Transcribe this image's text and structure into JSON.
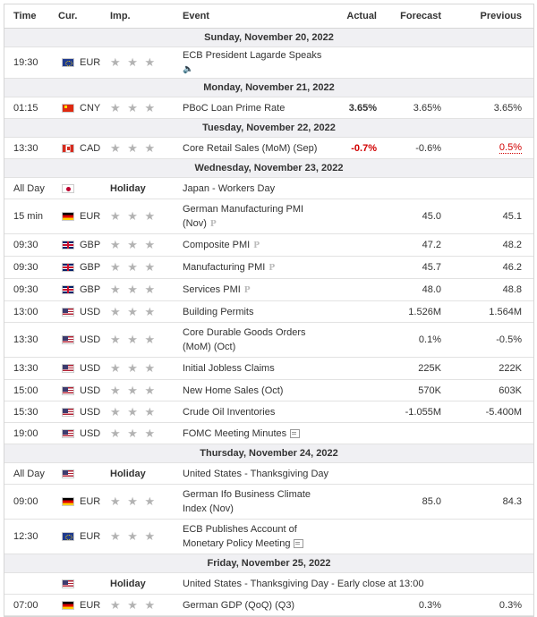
{
  "headers": {
    "time": "Time",
    "currency": "Cur.",
    "importance": "Imp.",
    "event": "Event",
    "actual": "Actual",
    "forecast": "Forecast",
    "previous": "Previous"
  },
  "stars_glyph": "★ ★ ★",
  "holiday_label": "Holiday",
  "days": [
    "Sunday, November 20, 2022",
    "Monday, November 21, 2022",
    "Tuesday, November 22, 2022",
    "Wednesday, November 23, 2022",
    "Thursday, November 24, 2022",
    "Friday, November 25, 2022"
  ],
  "events": [
    {
      "time": "19:30",
      "currency": "EUR",
      "event": "ECB President Lagarde Speaks",
      "actual": "",
      "forecast": "",
      "previous": "",
      "icon": "speaker-icon"
    },
    {
      "time": "01:15",
      "currency": "CNY",
      "event": "PBoC Loan Prime Rate",
      "actual": "3.65%",
      "forecast": "3.65%",
      "previous": "3.65%"
    },
    {
      "time": "13:30",
      "currency": "CAD",
      "event": "Core Retail Sales (MoM) (Sep)",
      "actual": "-0.7%",
      "forecast": "-0.6%",
      "previous": "0.5%"
    },
    {
      "time": "All Day",
      "currency": "",
      "event": "Japan - Workers Day"
    },
    {
      "time": "15 min",
      "currency": "EUR",
      "event_line1": "German Manufacturing PMI",
      "event_line2": "(Nov)",
      "actual": "",
      "forecast": "45.0",
      "previous": "45.1",
      "icon": "preliminary-icon"
    },
    {
      "time": "09:30",
      "currency": "GBP",
      "event": "Composite PMI",
      "actual": "",
      "forecast": "47.2",
      "previous": "48.2",
      "icon": "preliminary-icon"
    },
    {
      "time": "09:30",
      "currency": "GBP",
      "event": "Manufacturing PMI",
      "actual": "",
      "forecast": "45.7",
      "previous": "46.2",
      "icon": "preliminary-icon"
    },
    {
      "time": "09:30",
      "currency": "GBP",
      "event": "Services PMI",
      "actual": "",
      "forecast": "48.0",
      "previous": "48.8",
      "icon": "preliminary-icon"
    },
    {
      "time": "13:00",
      "currency": "USD",
      "event": "Building Permits",
      "actual": "",
      "forecast": "1.526M",
      "previous": "1.564M"
    },
    {
      "time": "13:30",
      "currency": "USD",
      "event_line1": "Core Durable Goods Orders",
      "event_line2": "(MoM) (Oct)",
      "actual": "",
      "forecast": "0.1%",
      "previous": "-0.5%"
    },
    {
      "time": "13:30",
      "currency": "USD",
      "event": "Initial Jobless Claims",
      "actual": "",
      "forecast": "225K",
      "previous": "222K"
    },
    {
      "time": "15:00",
      "currency": "USD",
      "event": "New Home Sales (Oct)",
      "actual": "",
      "forecast": "570K",
      "previous": "603K"
    },
    {
      "time": "15:30",
      "currency": "USD",
      "event": "Crude Oil Inventories",
      "actual": "",
      "forecast": "-1.055M",
      "previous": "-5.400M"
    },
    {
      "time": "19:00",
      "currency": "USD",
      "event": "FOMC Meeting Minutes",
      "actual": "",
      "forecast": "",
      "previous": "",
      "icon": "document-icon"
    },
    {
      "time": "All Day",
      "currency": "",
      "event": "United States - Thanksgiving Day"
    },
    {
      "time": "09:00",
      "currency": "EUR",
      "event_line1": "German Ifo Business Climate",
      "event_line2": "Index (Nov)",
      "actual": "",
      "forecast": "85.0",
      "previous": "84.3"
    },
    {
      "time": "12:30",
      "currency": "EUR",
      "event_line1": "ECB Publishes Account of",
      "event_line2": "Monetary Policy Meeting",
      "actual": "",
      "forecast": "",
      "previous": "",
      "icon": "document-icon"
    },
    {
      "time": "",
      "currency": "",
      "event": "United States - Thanksgiving Day - Early close at 13:00"
    },
    {
      "time": "07:00",
      "currency": "EUR",
      "event": "German GDP (QoQ) (Q3)",
      "actual": "",
      "forecast": "0.3%",
      "previous": "0.3%"
    }
  ]
}
